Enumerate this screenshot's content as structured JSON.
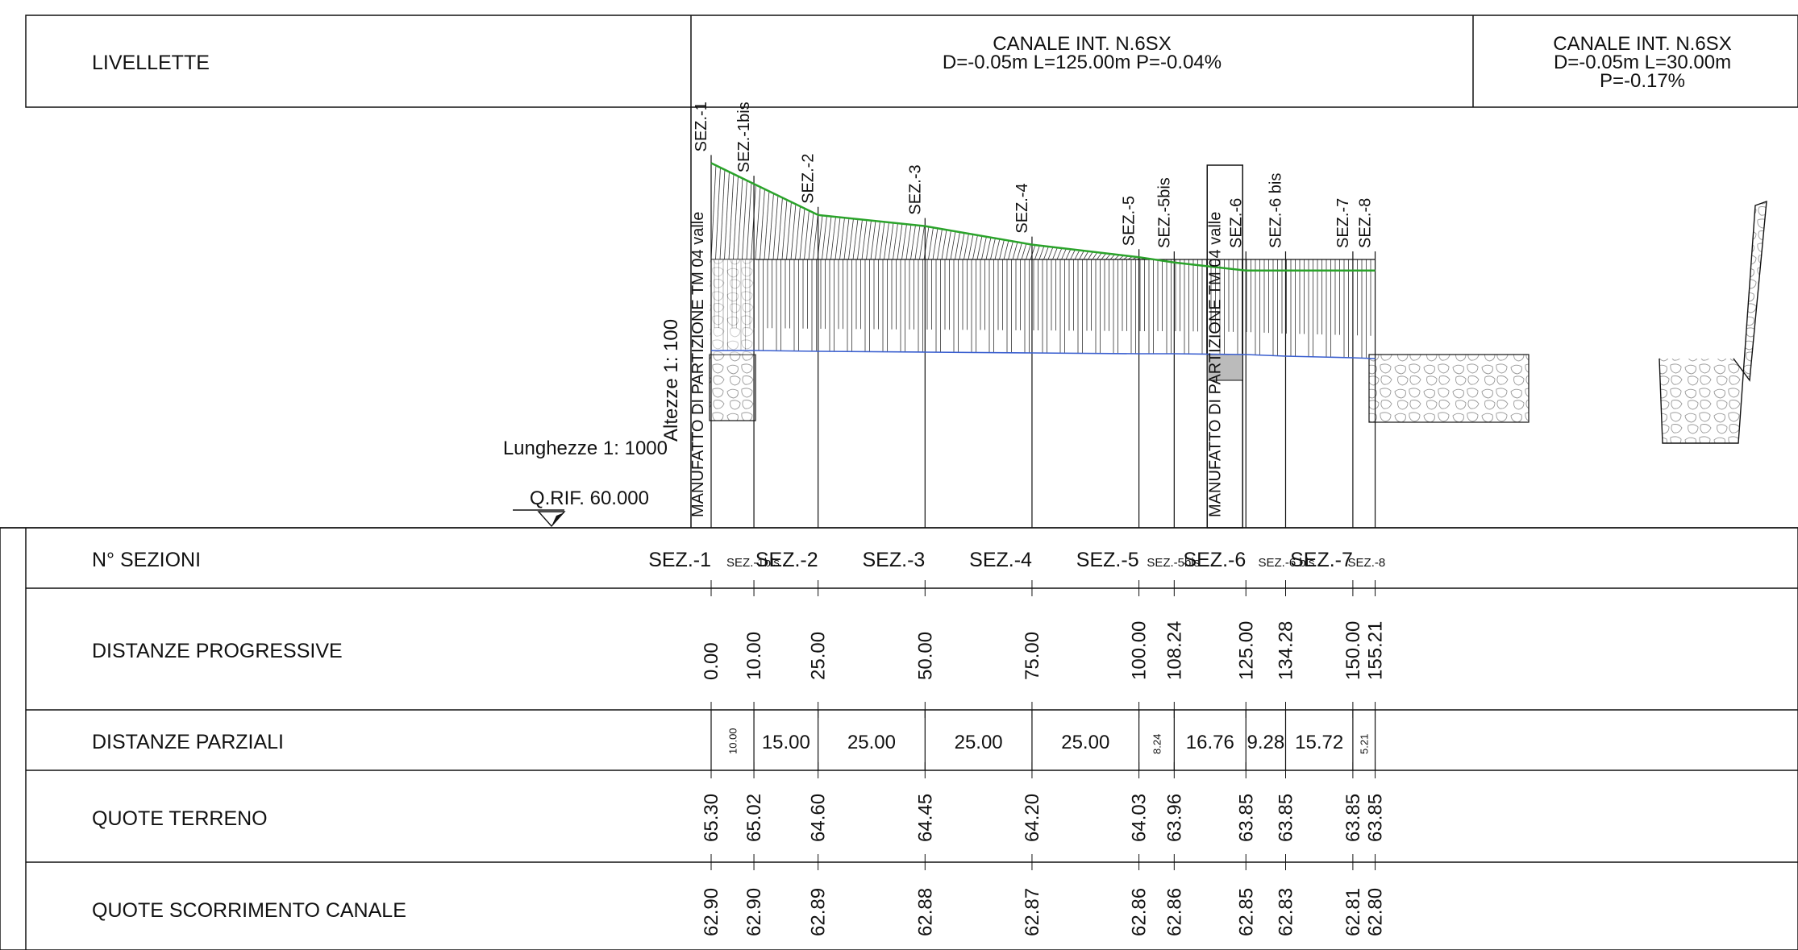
{
  "header": {
    "title": "LIVELLETTE",
    "segments": [
      {
        "name": "CANALE INT. N.6SX",
        "lines": [
          "D=-0.05m L=125.00m P=-0.04%"
        ]
      },
      {
        "name": "CANALE INT. N.6SX",
        "lines": [
          "D=-0.05m L=30.00m",
          "P=-0.17%"
        ]
      }
    ]
  },
  "scales": {
    "heights": "Altezze 1: 100",
    "lengths": "Lunghezze 1: 1000",
    "reference": "Q.RIF. 60.000"
  },
  "structures": [
    {
      "label": "MANUFATTO DI PARTIZIONE TM 04 valle",
      "station": 0
    },
    {
      "label": "MANUFATTO DI PARTIZIONE TM 04 valle",
      "station": 125
    }
  ],
  "rows": {
    "sections": "N° SEZIONI",
    "progressive": "DISTANZE PROGRESSIVE",
    "partial": "DISTANZE PARZIALI",
    "ground": "QUOTE TERRENO",
    "channel": "QUOTE SCORRIMENTO CANALE"
  },
  "sections": [
    {
      "name": "SEZ.-1",
      "small": false,
      "progressive": "0.00",
      "ground": "65.30",
      "channel": "62.90",
      "station": 0,
      "g": 65.3,
      "c": 62.9
    },
    {
      "name": "SEZ.-1bis",
      "small": true,
      "progressive": "10.00",
      "ground": "65.02",
      "channel": "62.90",
      "station": 10,
      "g": 65.02,
      "c": 62.9
    },
    {
      "name": "SEZ.-2",
      "small": false,
      "progressive": "25.00",
      "ground": "64.60",
      "channel": "62.89",
      "station": 25,
      "g": 64.6,
      "c": 62.89
    },
    {
      "name": "SEZ.-3",
      "small": false,
      "progressive": "50.00",
      "ground": "64.45",
      "channel": "62.88",
      "station": 50,
      "g": 64.45,
      "c": 62.88
    },
    {
      "name": "SEZ.-4",
      "small": false,
      "progressive": "75.00",
      "ground": "64.20",
      "channel": "62.87",
      "station": 75,
      "g": 64.2,
      "c": 62.87
    },
    {
      "name": "SEZ.-5",
      "small": false,
      "progressive": "100.00",
      "ground": "64.03",
      "channel": "62.86",
      "station": 100,
      "g": 64.03,
      "c": 62.86
    },
    {
      "name": "SEZ.-5bis",
      "small": true,
      "progressive": "108.24",
      "ground": "63.96",
      "channel": "62.86",
      "station": 108.24,
      "g": 63.96,
      "c": 62.86
    },
    {
      "name": "SEZ.-6",
      "small": false,
      "progressive": "125.00",
      "ground": "63.85",
      "channel": "62.85",
      "station": 125,
      "g": 63.85,
      "c": 62.85
    },
    {
      "name": "SEZ.-6 bis",
      "small": true,
      "progressive": "134.28",
      "ground": "63.85",
      "channel": "62.83",
      "station": 134.28,
      "g": 63.85,
      "c": 62.83
    },
    {
      "name": "SEZ.-7",
      "small": false,
      "progressive": "150.00",
      "ground": "63.85",
      "channel": "62.81",
      "station": 150,
      "g": 63.85,
      "c": 62.81
    },
    {
      "name": "SEZ.-8",
      "small": true,
      "progressive": "155.21",
      "ground": "63.85",
      "channel": "62.80",
      "station": 155.21,
      "g": 63.85,
      "c": 62.8
    }
  ],
  "partials": [
    {
      "value": "10.00",
      "small": true
    },
    {
      "value": "15.00",
      "small": false
    },
    {
      "value": "25.00",
      "small": false
    },
    {
      "value": "25.00",
      "small": false
    },
    {
      "value": "25.00",
      "small": false
    },
    {
      "value": "8.24",
      "small": true
    },
    {
      "value": "16.76",
      "small": false
    },
    {
      "value": "9.28",
      "small": false
    },
    {
      "value": "15.72",
      "small": false
    },
    {
      "value": "5.21",
      "small": true
    }
  ],
  "colors": {
    "ground": "#2aa32a",
    "channel": "#3a5fd0",
    "line": "#111111"
  }
}
